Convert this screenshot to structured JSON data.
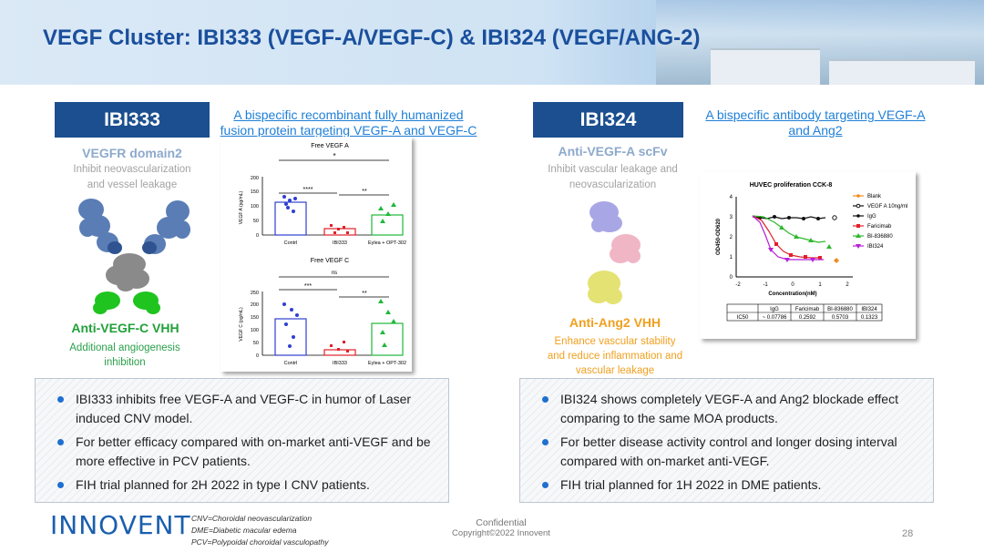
{
  "title": "VEGF Cluster: IBI333 (VEGF-A/VEGF-C) & IBI324 (VEGF/ANG-2)",
  "left": {
    "name": "IBI333",
    "description": "A bispecific recombinant fully humanized fusion protein targeting VEGF-A and VEGF-C",
    "domain1_title": "VEGFR domain2",
    "domain1_desc": "Inhibit neovascularization and vessel leakage",
    "domain2_title": "Anti-VEGF-C VHH",
    "domain2_desc": "Additional angiogenesis inhibition",
    "chart1": {
      "title": "Free VEGF A",
      "ylabel": "VEGF A (pg/mL)",
      "yticks": [
        "0",
        "50",
        "100",
        "150",
        "200"
      ],
      "categories": [
        "Contrl",
        "IBI333",
        "Eylea + OPT-302"
      ],
      "sig_top": "*",
      "sig_a": "****",
      "sig_b": "**"
    },
    "chart2": {
      "title": "Free VEGF C",
      "ylabel": "VEGF C (pg/mL)",
      "yticks": [
        "0",
        "50",
        "100",
        "150",
        "200",
        "250"
      ],
      "categories": [
        "Contrl",
        "IBI333",
        "Eylea + OPT-302"
      ],
      "sig_top": "ns",
      "sig_a": "***",
      "sig_b": "**"
    },
    "bullets": [
      "IBI333 inhibits free VEGF-A and VEGF-C in humor of Laser induced CNV model.",
      "For better efficacy compared with on-market anti-VEGF and be more effective in PCV patients.",
      "FIH trial planned for 2H 2022 in type I CNV patients."
    ]
  },
  "right": {
    "name": "IBI324",
    "description": "A bispecific antibody targeting VEGF-A and Ang2",
    "domain1_title": "Anti-VEGF-A scFv",
    "domain1_desc": "Inhibit vascular leakage and neovascularization",
    "domain2_title": "Anti-Ang2 VHH",
    "domain2_desc": "Enhance vascular stability and reduce inflammation and vascular leakage",
    "chart": {
      "title": "HUVEC proliferation CCK-8",
      "xlabel": "Concentration(nM)",
      "ylabel": "OD450-OD620",
      "xticks": [
        "-2",
        "-1",
        "0",
        "1",
        "2"
      ],
      "yticks": [
        "0",
        "1",
        "2",
        "3",
        "4"
      ],
      "legend": [
        "Blank",
        "VEGF A 10ng/ml",
        "IgG",
        "Faricimab",
        "BI-836880",
        "IBI324"
      ],
      "legend_colors": [
        "#f28a1c",
        "#111111",
        "#111111",
        "#e0202a",
        "#2eb82e",
        "#b81fd6"
      ],
      "table_headers": [
        "",
        "IgG",
        "Faricimab",
        "BI-836880",
        "IBI324"
      ],
      "table_row": [
        "IC50",
        "~ 0.07786",
        "0.2592",
        "0.5703",
        "0.1323"
      ]
    },
    "bullets": [
      "IBI324 shows completely VEGF-A and Ang2 blockade effect comparing to the same MOA products.",
      "For better disease activity control and longer dosing interval compared with on-market anti-VEGF.",
      "FIH trial planned for 1H 2022 in DME patients."
    ]
  },
  "footer": {
    "logo": "INNOVENT",
    "notes": [
      "CNV=Choroidal neovascularization",
      "DME=Diabetic macular edema",
      "PCV=Polypoidal choroidal vasculopathy"
    ],
    "confidential": "Confidential",
    "copyright": "Copyright©2022  Innovent",
    "page": "28"
  }
}
